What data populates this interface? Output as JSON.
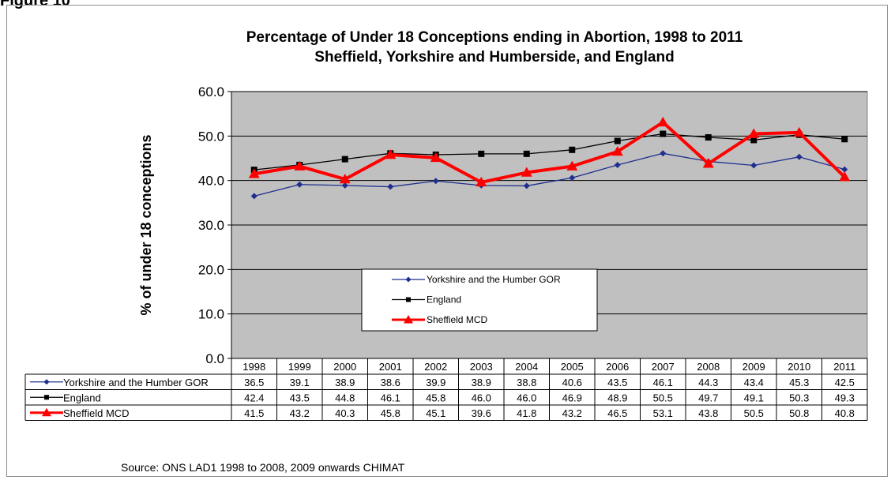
{
  "figure_label": "Figure 10",
  "source": "Source: ONS LAD1 1998 to 2008, 2009 onwards CHIMAT",
  "colors": {
    "yorkshire": "#1f2f8f",
    "england": "#000000",
    "sheffield": "#ff0000",
    "plot_bg": "#c0c0c0"
  },
  "chart_data": {
    "type": "line",
    "title": "Percentage of Under 18 Conceptions ending in Abortion, 1998 to 2011",
    "subtitle": "Sheffield, Yorkshire and Humberside, and England",
    "xlabel": "",
    "ylabel": "% of under 18 conceptions",
    "ylim": [
      0,
      60
    ],
    "yticks": [
      "0.0",
      "10.0",
      "20.0",
      "30.0",
      "40.0",
      "50.0",
      "60.0"
    ],
    "grid": true,
    "legend_position": "lower-center",
    "categories": [
      "1998",
      "1999",
      "2000",
      "2001",
      "2002",
      "2003",
      "2004",
      "2005",
      "2006",
      "2007",
      "2008",
      "2009",
      "2010",
      "2011"
    ],
    "series": [
      {
        "name": "Yorkshire and the Humber GOR",
        "marker": "diamond",
        "color": "#1f2f8f",
        "values": [
          36.5,
          39.1,
          38.9,
          38.6,
          39.9,
          38.9,
          38.8,
          40.6,
          43.5,
          46.1,
          44.3,
          43.4,
          45.3,
          42.5
        ],
        "labels": [
          "36.5",
          "39.1",
          "38.9",
          "38.6",
          "39.9",
          "38.9",
          "38.8",
          "40.6",
          "43.5",
          "46.1",
          "44.3",
          "43.4",
          "45.3",
          "42.5"
        ]
      },
      {
        "name": "England",
        "marker": "square",
        "color": "#000000",
        "values": [
          42.4,
          43.5,
          44.8,
          46.1,
          45.8,
          46.0,
          46.0,
          46.9,
          48.9,
          50.5,
          49.7,
          49.1,
          50.3,
          49.3
        ],
        "labels": [
          "42.4",
          "43.5",
          "44.8",
          "46.1",
          "45.8",
          "46.0",
          "46.0",
          "46.9",
          "48.9",
          "50.5",
          "49.7",
          "49.1",
          "50.3",
          "49.3"
        ]
      },
      {
        "name": "Sheffield MCD",
        "marker": "triangle",
        "color": "#ff0000",
        "values": [
          41.5,
          43.2,
          40.3,
          45.8,
          45.1,
          39.6,
          41.8,
          43.2,
          46.5,
          53.1,
          43.8,
          50.5,
          50.8,
          40.8
        ],
        "labels": [
          "41.5",
          "43.2",
          "40.3",
          "45.8",
          "45.1",
          "39.6",
          "41.8",
          "43.2",
          "46.5",
          "53.1",
          "43.8",
          "50.5",
          "50.8",
          "40.8"
        ]
      }
    ]
  }
}
